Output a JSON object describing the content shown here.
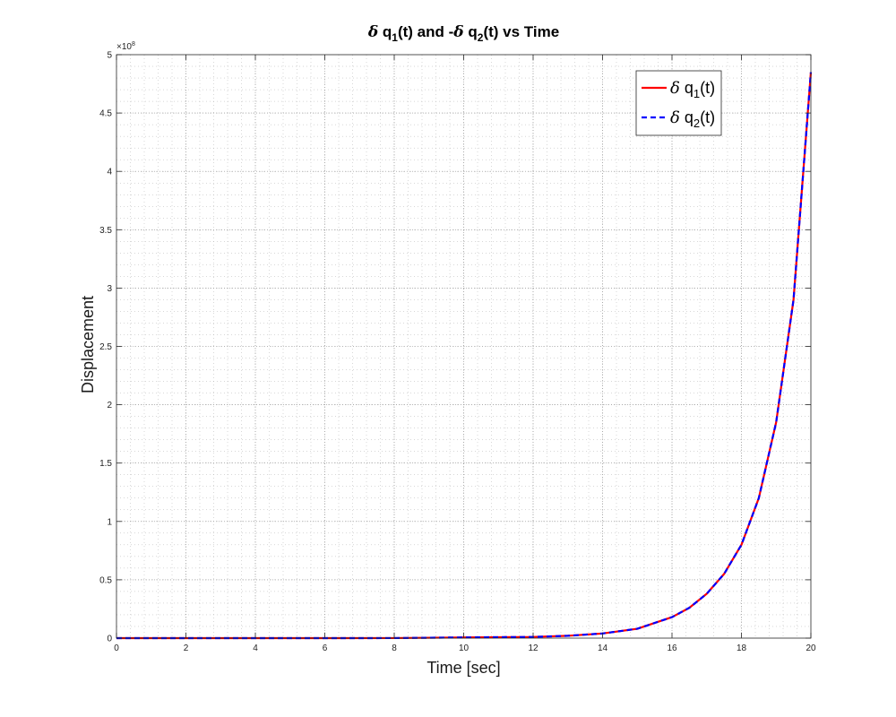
{
  "chart_data": {
    "type": "line",
    "title": {
      "parts": [
        {
          "text": "δ",
          "style": "italic-normal"
        },
        {
          "text": " q"
        },
        {
          "text": "1",
          "sub": true
        },
        {
          "text": "(t) and -"
        },
        {
          "text": "δ",
          "style": "italic-normal"
        },
        {
          "text": " q"
        },
        {
          "text": "2",
          "sub": true
        },
        {
          "text": "(t) vs Time"
        }
      ]
    },
    "xlabel": "Time [sec]",
    "ylabel": "Displacement",
    "xlim": [
      0,
      20
    ],
    "ylim": [
      0,
      500000000
    ],
    "y_exponent_label": "×10",
    "y_exponent_power": "8",
    "x_ticks": [
      "0",
      "2",
      "4",
      "6",
      "8",
      "10",
      "12",
      "14",
      "16",
      "18",
      "20"
    ],
    "y_ticks": [
      "0",
      "0.5",
      "1",
      "1.5",
      "2",
      "2.5",
      "3",
      "3.5",
      "4",
      "4.5",
      "5"
    ],
    "grid": true,
    "minor_grid": true,
    "legend_position": "top-right",
    "x": [
      0,
      2,
      4,
      6,
      8,
      10,
      12,
      13,
      14,
      15,
      16,
      16.5,
      17,
      17.5,
      18,
      18.5,
      19,
      19.5,
      20
    ],
    "series": [
      {
        "name": "δ q1(t)",
        "legend": {
          "greek": "δ",
          "base": " q",
          "sub": "1",
          "tail": "(t)"
        },
        "color": "#ff0000",
        "dash": "solid",
        "values": [
          0,
          10,
          150,
          2500,
          40000,
          600000,
          1000000,
          2000000,
          4000000,
          8000000,
          18000000,
          26000000,
          38000000,
          55000000,
          80000000,
          120000000,
          185000000,
          290000000,
          485000000
        ]
      },
      {
        "name": "δ q2(t)",
        "legend": {
          "greek": "δ",
          "base": " q",
          "sub": "2",
          "tail": "(t)"
        },
        "color": "#0000ff",
        "dash": "dashed",
        "values": [
          0,
          10,
          150,
          2500,
          40000,
          600000,
          1000000,
          2000000,
          4000000,
          8000000,
          18000000,
          26000000,
          38000000,
          55000000,
          80000000,
          120000000,
          185000000,
          290000000,
          485000000
        ]
      }
    ]
  }
}
